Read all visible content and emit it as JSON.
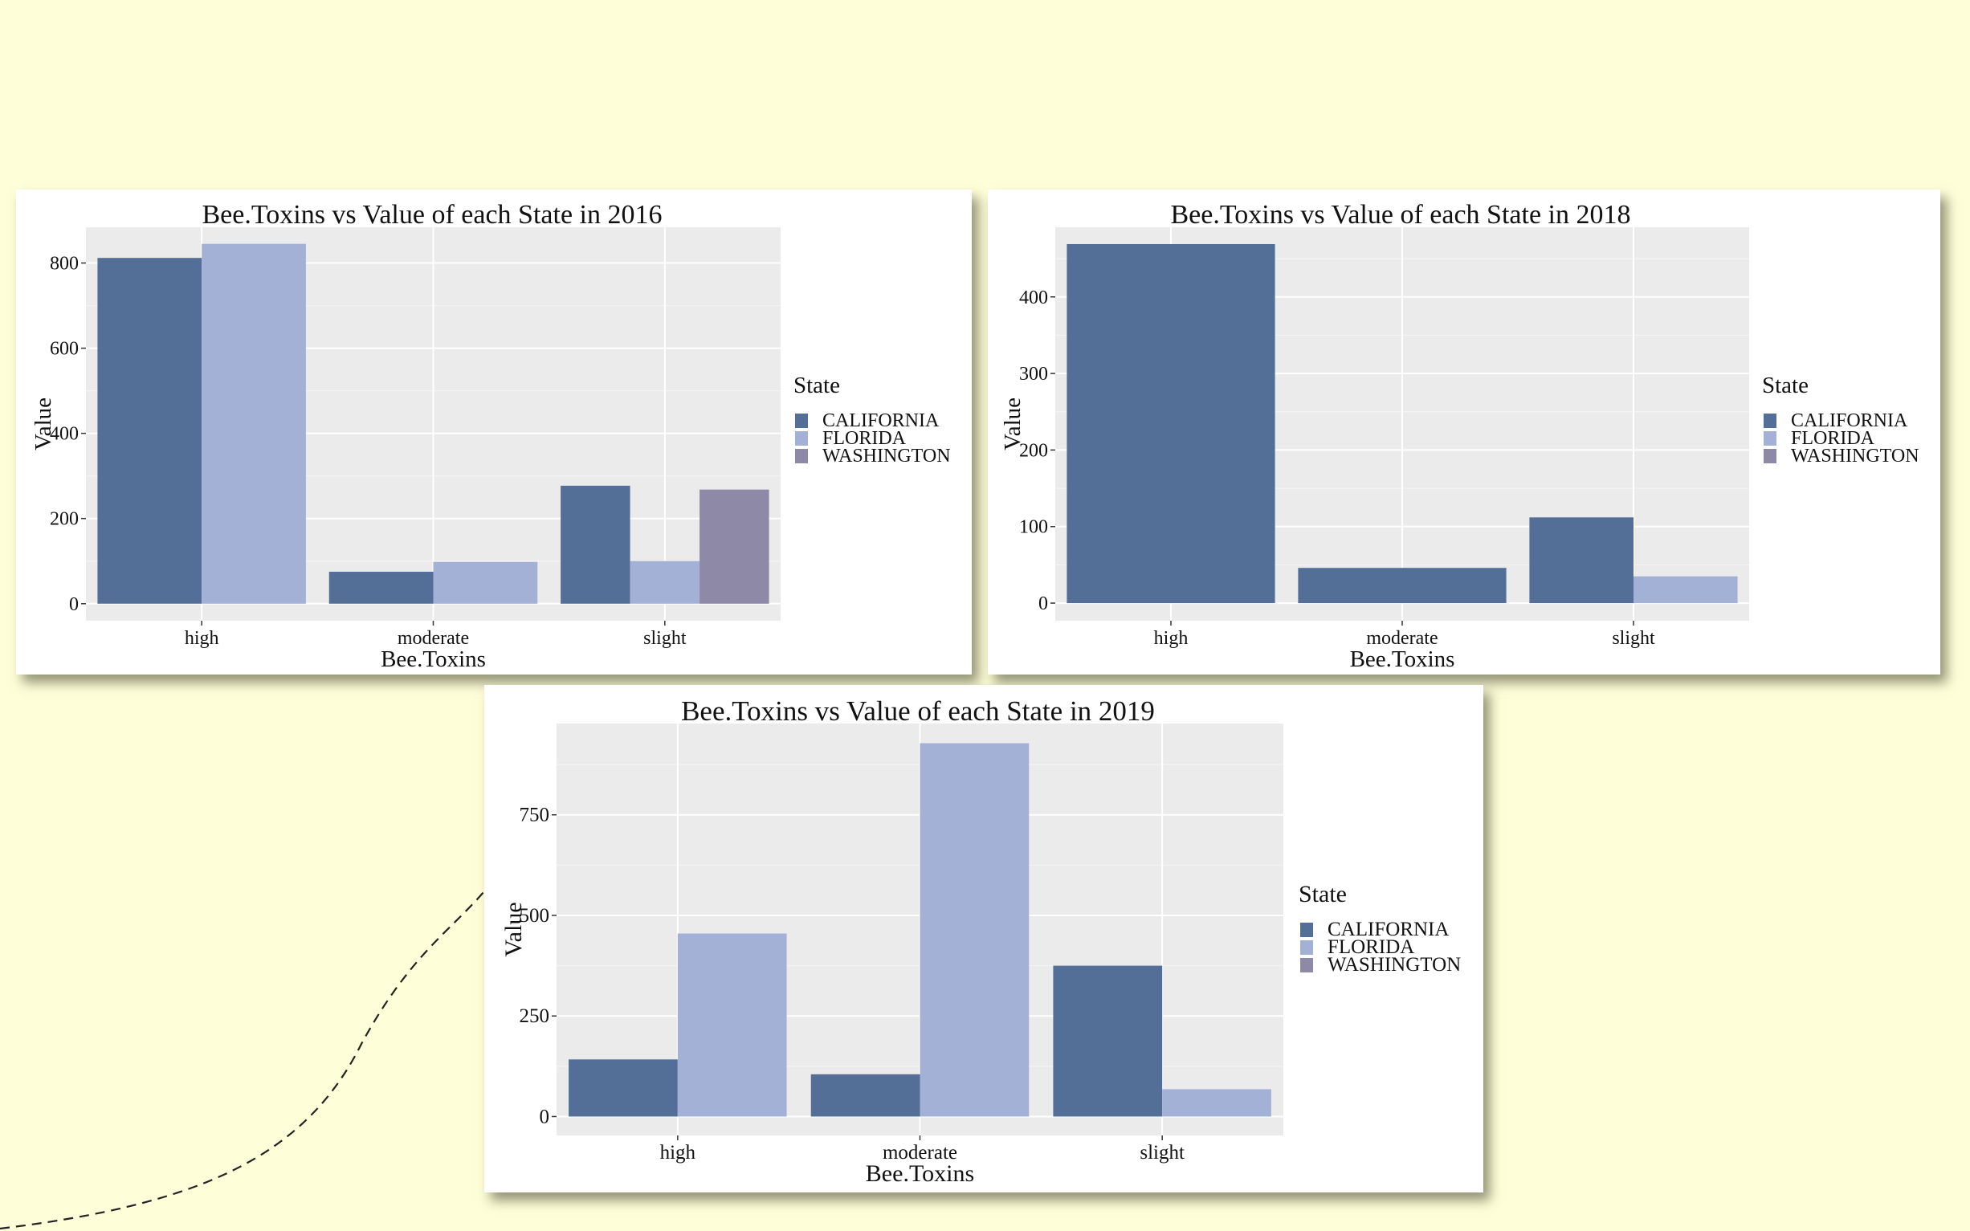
{
  "colors": {
    "background": "#fefed8",
    "panel_bg": "#ebebeb",
    "CALIFORNIA": "#546f97",
    "FLORIDA": "#a4b1d7",
    "WASHINGTON": "#8d89a6"
  },
  "chart_data": [
    {
      "type": "bar",
      "title": "Bee.Toxins vs Value of each State in 2016",
      "xlabel": "Bee.Toxins",
      "ylabel": "Value",
      "categories": [
        "high",
        "moderate",
        "slight"
      ],
      "series": [
        {
          "name": "CALIFORNIA",
          "values": [
            812,
            75,
            277
          ]
        },
        {
          "name": "FLORIDA",
          "values": [
            845,
            98,
            100
          ]
        },
        {
          "name": "WASHINGTON",
          "values": [
            null,
            null,
            268
          ]
        }
      ],
      "ylim": [
        -40,
        884
      ],
      "yticks": [
        0,
        200,
        400,
        600,
        800
      ],
      "legend_title": "State",
      "legend_position": "right",
      "grid": true
    },
    {
      "type": "bar",
      "title": "Bee.Toxins vs Value of each State in 2018",
      "xlabel": "Bee.Toxins",
      "ylabel": "Value",
      "categories": [
        "high",
        "moderate",
        "slight"
      ],
      "series": [
        {
          "name": "CALIFORNIA",
          "values": [
            469,
            46,
            112
          ]
        },
        {
          "name": "FLORIDA",
          "values": [
            null,
            null,
            35
          ]
        }
      ],
      "ylim": [
        -23,
        491
      ],
      "yticks": [
        0,
        100,
        200,
        300,
        400
      ],
      "legend_title": "State",
      "legend_entries": [
        "CALIFORNIA",
        "FLORIDA",
        "WASHINGTON"
      ],
      "legend_position": "right",
      "grid": true
    },
    {
      "type": "bar",
      "title": "Bee.Toxins vs Value of each State in 2019",
      "xlabel": "Bee.Toxins",
      "ylabel": "Value",
      "categories": [
        "high",
        "moderate",
        "slight"
      ],
      "series": [
        {
          "name": "CALIFORNIA",
          "values": [
            142,
            105,
            375
          ]
        },
        {
          "name": "FLORIDA",
          "values": [
            455,
            928,
            68
          ]
        }
      ],
      "ylim": [
        -47,
        977
      ],
      "yticks": [
        0,
        250,
        500,
        750
      ],
      "legend_title": "State",
      "legend_entries": [
        "CALIFORNIA",
        "FLORIDA",
        "WASHINGTON"
      ],
      "legend_position": "right",
      "grid": true
    }
  ]
}
